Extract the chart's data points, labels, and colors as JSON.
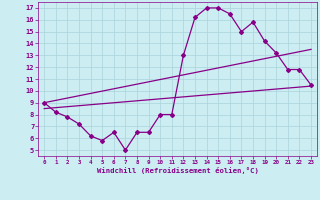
{
  "xlabel": "Windchill (Refroidissement éolien,°C)",
  "xlim": [
    -0.5,
    23.5
  ],
  "ylim": [
    4.5,
    17.5
  ],
  "xticks": [
    0,
    1,
    2,
    3,
    4,
    5,
    6,
    7,
    8,
    9,
    10,
    11,
    12,
    13,
    14,
    15,
    16,
    17,
    18,
    19,
    20,
    21,
    22,
    23
  ],
  "yticks": [
    5,
    6,
    7,
    8,
    9,
    10,
    11,
    12,
    13,
    14,
    15,
    16,
    17
  ],
  "bg_color": "#cceef2",
  "grid_color": "#aad4dc",
  "line_color": "#880088",
  "line1_x": [
    0,
    1,
    2,
    3,
    4,
    5,
    6,
    7,
    8,
    9,
    10,
    11,
    12,
    13,
    14,
    15,
    16,
    17,
    18,
    19,
    20,
    21,
    22,
    23
  ],
  "line1_y": [
    9.0,
    8.2,
    7.8,
    7.2,
    6.2,
    5.8,
    6.5,
    5.0,
    6.5,
    6.5,
    8.0,
    8.0,
    13.0,
    16.2,
    17.0,
    17.0,
    16.5,
    15.0,
    15.8,
    14.2,
    13.2,
    11.8,
    11.8,
    10.5
  ],
  "line2_x": [
    0,
    23
  ],
  "line2_y": [
    8.5,
    10.4
  ],
  "line3_x": [
    0,
    23
  ],
  "line3_y": [
    9.0,
    13.5
  ],
  "marker": "D",
  "markersize": 2.0,
  "linewidth": 0.9
}
